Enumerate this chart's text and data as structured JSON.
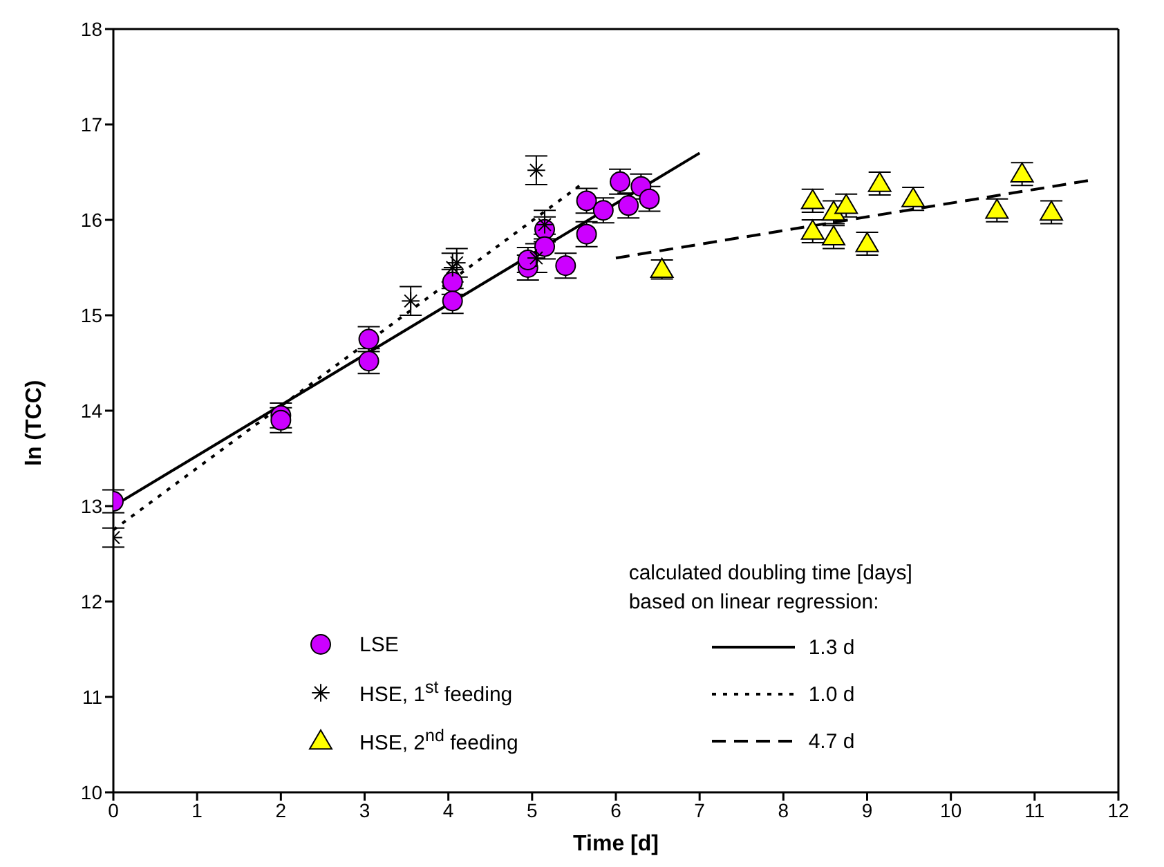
{
  "chart_data": {
    "type": "scatter",
    "xlabel": "Time [d]",
    "ylabel": "ln (TCC)",
    "xlim": [
      0,
      12
    ],
    "xticks": [
      0,
      1,
      2,
      3,
      4,
      5,
      6,
      7,
      8,
      9,
      10,
      11,
      12
    ],
    "ylim": [
      10,
      18
    ],
    "yticks": [
      10,
      11,
      12,
      13,
      14,
      15,
      16,
      17,
      18
    ],
    "legend": "bottom",
    "annotations": [
      "calculated doubling time [days]",
      "based on linear regression:"
    ],
    "series": [
      {
        "name": "LSE",
        "marker": "circle",
        "color": "#cc00ff",
        "x": [
          0,
          2,
          2,
          3.05,
          3.05,
          4.05,
          4.05,
          4.95,
          4.95,
          5.15,
          5.15,
          5.4,
          5.65,
          5.65,
          5.85,
          6.05,
          6.15,
          6.3,
          6.4
        ],
        "values": [
          13.05,
          13.95,
          13.9,
          14.75,
          14.52,
          15.35,
          15.15,
          15.5,
          15.58,
          15.9,
          15.72,
          15.52,
          16.2,
          15.85,
          16.1,
          16.4,
          16.15,
          16.35,
          16.22
        ],
        "errors": [
          0.12,
          0.13,
          0.13,
          0.13,
          0.13,
          0.13,
          0.13,
          0.13,
          0.13,
          0.13,
          0.13,
          0.13,
          0.13,
          0.13,
          0.13,
          0.13,
          0.13,
          0.13,
          0.13
        ]
      },
      {
        "name": "HSE, 1$^{st}$ feeding",
        "marker": "cross",
        "color": "#000000",
        "x": [
          0,
          3.55,
          4.05,
          4.1,
          5.05,
          5.05,
          5.15
        ],
        "values": [
          12.67,
          15.15,
          15.5,
          15.55,
          16.52,
          15.6,
          15.95
        ],
        "errors": [
          0.1,
          0.15,
          0.15,
          0.15,
          0.15,
          0.15,
          0.15
        ]
      },
      {
        "name": "HSE, 2$^{nd}$ feeding",
        "marker": "triangle",
        "color": "#ffff00",
        "x": [
          6.55,
          8.35,
          8.35,
          8.6,
          8.6,
          8.75,
          9.0,
          9.15,
          9.55,
          10.55,
          10.85,
          11.2
        ],
        "values": [
          15.48,
          16.2,
          15.88,
          16.08,
          15.82,
          16.15,
          15.75,
          16.38,
          16.22,
          16.1,
          16.48,
          16.08
        ],
        "errors": [
          0.1,
          0.12,
          0.12,
          0.12,
          0.12,
          0.12,
          0.12,
          0.12,
          0.12,
          0.12,
          0.12,
          0.12
        ]
      },
      {
        "name": "1.3 d",
        "type": "line",
        "marker": "none",
        "line_style": "solid",
        "color": "#000000",
        "x": [
          0,
          7
        ],
        "values": [
          13.0,
          16.7
        ]
      },
      {
        "name": "1.0 d",
        "type": "line",
        "marker": "none",
        "line_style": "dotted",
        "color": "#000000",
        "x": [
          0,
          5.6
        ],
        "values": [
          12.75,
          16.38
        ]
      },
      {
        "name": "4.7 d",
        "type": "line",
        "marker": "none",
        "line_style": "dashed",
        "color": "#000000",
        "x": [
          6,
          11.7
        ],
        "values": [
          15.6,
          16.42
        ]
      }
    ]
  }
}
